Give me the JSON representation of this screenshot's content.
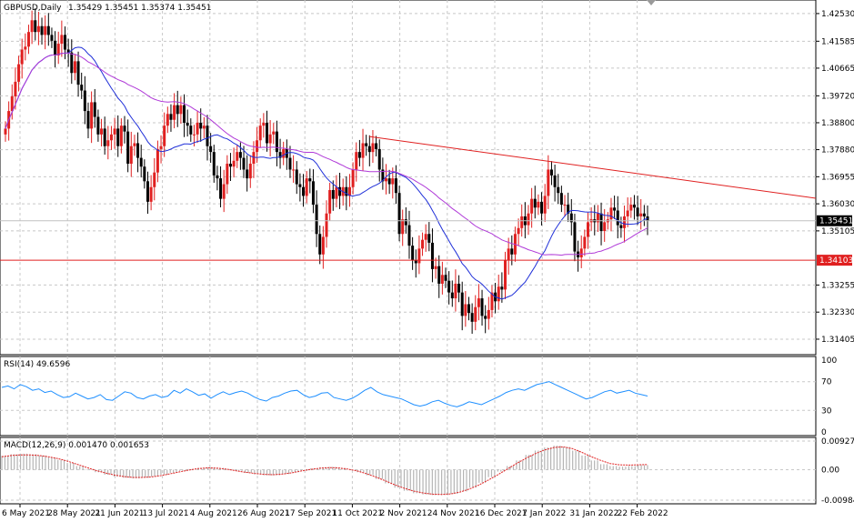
{
  "chart_data": [
    {
      "type": "candlestick",
      "title": "GBPUSD,Daily",
      "ohlc_header": "1.35429 1.35451 1.35374 1.35451",
      "ylim": [
        1.31,
        1.429
      ],
      "y_ticks": [
        "1.42530",
        "1.41585",
        "1.40665",
        "1.39720",
        "1.38800",
        "1.37880",
        "1.36955",
        "1.36030",
        "1.35105",
        "1.33255",
        "1.32330",
        "1.31405"
      ],
      "current_price_label": "1.35451",
      "current_price": 1.35451,
      "horizontal_level_label": "1.34103",
      "horizontal_level": 1.34103,
      "x_tick_labels": [
        "6 May 2021",
        "28 May 2021",
        "21 Jun 2021",
        "13 Jul 2021",
        "4 Aug 2021",
        "26 Aug 2021",
        "17 Sep 2021",
        "11 Oct 2021",
        "2 Nov 2021",
        "24 Nov 2021",
        "16 Dec 2021",
        "7 Jan 2022",
        "31 Jan 2022",
        "22 Feb 2022"
      ],
      "trendline": {
        "from": {
          "date": "2021-10-20",
          "price": 1.3833
        },
        "to": {
          "date": "2022-03-02",
          "price": 1.3622
        }
      },
      "close_series": [
        1.386,
        1.392,
        1.397,
        1.402,
        1.408,
        1.413,
        1.414,
        1.419,
        1.423,
        1.419,
        1.421,
        1.418,
        1.421,
        1.418,
        1.416,
        1.411,
        1.415,
        1.418,
        1.413,
        1.412,
        1.405,
        1.409,
        1.401,
        1.399,
        1.392,
        1.386,
        1.395,
        1.39,
        1.384,
        1.386,
        1.38,
        1.382,
        1.384,
        1.386,
        1.38,
        1.387,
        1.385,
        1.374,
        1.38,
        1.381,
        1.376,
        1.373,
        1.368,
        1.361,
        1.366,
        1.371,
        1.379,
        1.38,
        1.387,
        1.391,
        1.389,
        1.394,
        1.391,
        1.394,
        1.388,
        1.387,
        1.384,
        1.384,
        1.388,
        1.386,
        1.387,
        1.38,
        1.378,
        1.37,
        1.369,
        1.362,
        1.367,
        1.374,
        1.373,
        1.375,
        1.378,
        1.376,
        1.372,
        1.369,
        1.374,
        1.378,
        1.382,
        1.387,
        1.388,
        1.381,
        1.384,
        1.385,
        1.378,
        1.376,
        1.379,
        1.376,
        1.372,
        1.372,
        1.367,
        1.366,
        1.363,
        1.369,
        1.368,
        1.36,
        1.35,
        1.343,
        1.349,
        1.357,
        1.365,
        1.362,
        1.366,
        1.363,
        1.366,
        1.363,
        1.366,
        1.372,
        1.378,
        1.376,
        1.381,
        1.38,
        1.378,
        1.381,
        1.379,
        1.372,
        1.368,
        1.369,
        1.367,
        1.369,
        1.364,
        1.35,
        1.355,
        1.353,
        1.346,
        1.341,
        1.34,
        1.345,
        1.348,
        1.35,
        1.347,
        1.338,
        1.339,
        1.333,
        1.336,
        1.334,
        1.33,
        1.328,
        1.333,
        1.33,
        1.322,
        1.326,
        1.323,
        1.32,
        1.325,
        1.328,
        1.322,
        1.321,
        1.324,
        1.33,
        1.327,
        1.332,
        1.331,
        1.341,
        1.345,
        1.343,
        1.35,
        1.352,
        1.356,
        1.353,
        1.357,
        1.362,
        1.359,
        1.361,
        1.357,
        1.363,
        1.372,
        1.37,
        1.366,
        1.364,
        1.36,
        1.36,
        1.357,
        1.354,
        1.344,
        1.342,
        1.345,
        1.349,
        1.354,
        1.355,
        1.354,
        1.357,
        1.351,
        1.354,
        1.355,
        1.359,
        1.358,
        1.353,
        1.352,
        1.356,
        1.358,
        1.36,
        1.359,
        1.356,
        1.357,
        1.356,
        1.3545
      ],
      "moving_averages": [
        {
          "color": "#1f2fd8",
          "period": "fast"
        },
        {
          "color": "#b03ad8",
          "period": "slow"
        }
      ]
    },
    {
      "type": "line",
      "title": "RSI(14) 49.6596",
      "ylim": [
        0,
        100
      ],
      "y_ticks": [
        "100",
        "70",
        "30",
        "0"
      ],
      "values": [
        62,
        64,
        60,
        66,
        63,
        58,
        60,
        55,
        57,
        52,
        48,
        49,
        54,
        50,
        46,
        48,
        52,
        45,
        44,
        50,
        56,
        54,
        48,
        46,
        50,
        52,
        48,
        50,
        58,
        54,
        60,
        56,
        51,
        53,
        47,
        52,
        56,
        52,
        55,
        57,
        54,
        49,
        45,
        43,
        48,
        50,
        54,
        57,
        58,
        52,
        48,
        50,
        54,
        55,
        48,
        46,
        44,
        47,
        52,
        58,
        62,
        56,
        52,
        50,
        48,
        46,
        42,
        38,
        36,
        38,
        42,
        44,
        40,
        37,
        35,
        38,
        42,
        40,
        38,
        42,
        46,
        50,
        55,
        58,
        60,
        58,
        62,
        66,
        68,
        70,
        66,
        62,
        58,
        54,
        50,
        46,
        48,
        52,
        56,
        58,
        54,
        56,
        58,
        54,
        52,
        50
      ],
      "line_color": "#1e8fff"
    },
    {
      "type": "bar+line",
      "title": "MACD(12,26,9) 0.001470 0.001653",
      "ylim": [
        -0.009844,
        0.009276
      ],
      "y_ticks": [
        "0.009276",
        "0.00",
        "-0.009844"
      ],
      "histogram": [
        0.0045,
        0.005,
        0.0052,
        0.005,
        0.0046,
        0.004,
        0.0032,
        0.0022,
        0.0012,
        0.0002,
        -0.0008,
        -0.0016,
        -0.0022,
        -0.0026,
        -0.0028,
        -0.0026,
        -0.0022,
        -0.0016,
        -0.001,
        -0.0004,
        0.0002,
        0.0006,
        0.0008,
        0.0006,
        0.0002,
        -0.0004,
        -0.001,
        -0.0015,
        -0.0018,
        -0.0018,
        -0.0014,
        -0.0008,
        -0.0002,
        0.0004,
        0.0008,
        0.0009,
        0.0006,
        0.0,
        -0.0008,
        -0.0018,
        -0.003,
        -0.0044,
        -0.0058,
        -0.0068,
        -0.0076,
        -0.008,
        -0.0082,
        -0.0082,
        -0.0078,
        -0.007,
        -0.0058,
        -0.0042,
        -0.0024,
        -0.0006,
        0.0012,
        0.003,
        0.0048,
        0.0062,
        0.0072,
        0.0078,
        0.0074,
        0.0062,
        0.0046,
        0.003,
        0.0018,
        0.0012,
        0.001,
        0.0012,
        0.0015,
        0.0015
      ],
      "signal": [
        0.0042,
        0.0046,
        0.0048,
        0.0048,
        0.0046,
        0.0042,
        0.0036,
        0.0028,
        0.0018,
        0.0008,
        -0.0002,
        -0.001,
        -0.0017,
        -0.0022,
        -0.0025,
        -0.0025,
        -0.0023,
        -0.0019,
        -0.0013,
        -0.0007,
        -0.0001,
        0.0004,
        0.0006,
        0.0005,
        0.0002,
        -0.0003,
        -0.0008,
        -0.0012,
        -0.0015,
        -0.0016,
        -0.0014,
        -0.001,
        -0.0004,
        0.0001,
        0.0005,
        0.0007,
        0.0006,
        0.0002,
        -0.0004,
        -0.0013,
        -0.0024,
        -0.0036,
        -0.0049,
        -0.006,
        -0.0069,
        -0.0075,
        -0.0079,
        -0.008,
        -0.0078,
        -0.0072,
        -0.0062,
        -0.0049,
        -0.0033,
        -0.0016,
        0.0002,
        0.002,
        0.0037,
        0.0052,
        0.0064,
        0.0072,
        0.0074,
        0.0068,
        0.0056,
        0.0042,
        0.003,
        0.002,
        0.0016,
        0.0015,
        0.0016,
        0.0017
      ],
      "signal_color": "#e02020",
      "histogram_color": "#b4b4b4"
    }
  ]
}
